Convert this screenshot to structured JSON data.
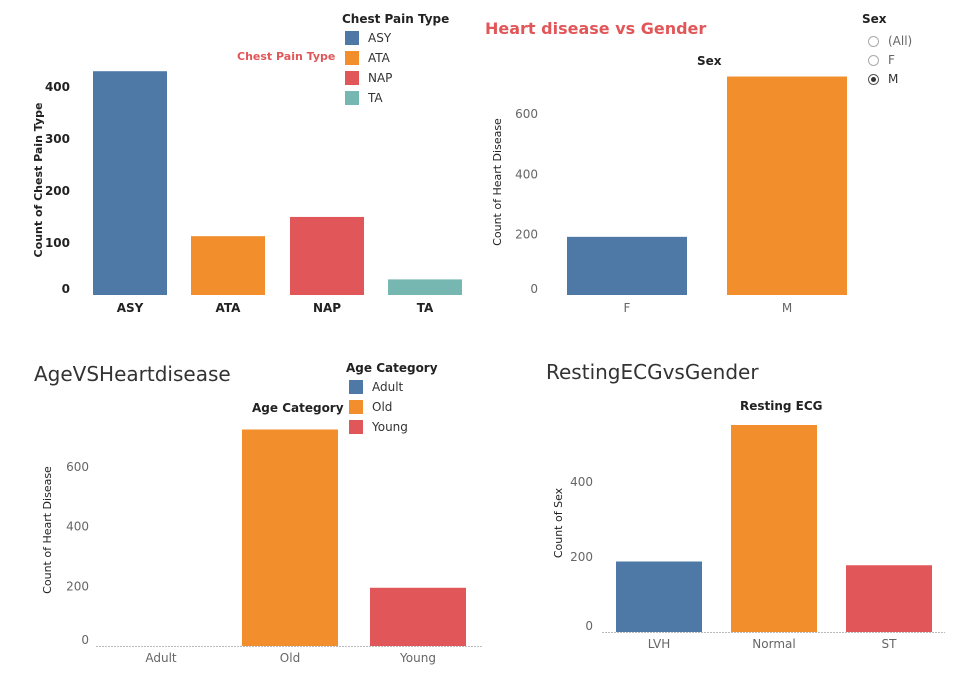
{
  "chart_data": [
    {
      "type": "bar",
      "title": "Chest Pain Type",
      "ylabel": "Count of Chest Pain Type",
      "categories": [
        "ASY",
        "ATA",
        "NAP",
        "TA"
      ],
      "values": [
        430,
        113,
        150,
        30
      ],
      "colors": [
        "#4e79a7",
        "#f28e2b",
        "#e15759",
        "#76b7b2"
      ],
      "yticks": [
        0,
        100,
        200,
        300,
        400
      ],
      "ylim": [
        0,
        440
      ],
      "legend": {
        "title": "Chest Pain Type",
        "entries": [
          "ASY",
          "ATA",
          "NAP",
          "TA"
        ],
        "position": "top-right"
      }
    },
    {
      "type": "bar",
      "title": "Heart disease vs Gender",
      "subtitle": "Sex",
      "ylabel": "Count of Heart Disease",
      "categories": [
        "F",
        "M"
      ],
      "values": [
        193,
        725
      ],
      "colors": [
        "#4e79a7",
        "#f28e2b"
      ],
      "yticks": [
        0,
        200,
        400,
        600
      ],
      "ylim": [
        0,
        740
      ]
    },
    {
      "type": "bar",
      "title": "AgeVSHeartdisease",
      "subtitle": "Age Category",
      "ylabel": "Count of Heart Disease",
      "categories": [
        "Adult",
        "Old",
        "Young"
      ],
      "values": [
        0,
        725,
        195
      ],
      "colors": [
        "#4e79a7",
        "#f28e2b",
        "#e15759"
      ],
      "yticks": [
        0,
        200,
        400,
        600
      ],
      "ylim": [
        0,
        740
      ],
      "legend": {
        "title": "Age Category",
        "entries": [
          "Adult",
          "Old",
          "Young"
        ],
        "position": "top-right"
      }
    },
    {
      "type": "bar",
      "title": "RestingECGvsGender",
      "subtitle": "Resting ECG",
      "ylabel": "Count of Sex",
      "categories": [
        "LVH",
        "Normal",
        "ST"
      ],
      "values": [
        188,
        552,
        178
      ],
      "colors": [
        "#4e79a7",
        "#f28e2b",
        "#e15759"
      ],
      "yticks": [
        0,
        200,
        400
      ],
      "ylim": [
        0,
        560
      ]
    }
  ],
  "filter": {
    "title": "Sex",
    "options": [
      "(All)",
      "F",
      "M"
    ],
    "selected": "M"
  }
}
